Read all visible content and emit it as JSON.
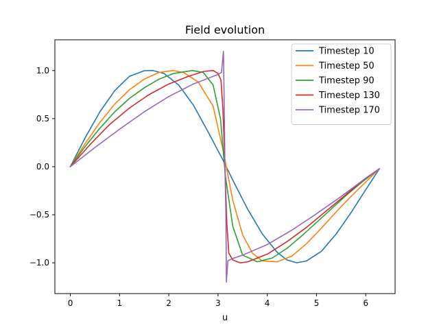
{
  "chart_data": {
    "type": "line",
    "title": "Field evolution",
    "xlabel": "u",
    "ylabel": "",
    "xlim": [
      -0.314,
      6.597
    ],
    "ylim": [
      -1.32,
      1.32
    ],
    "xticks": [
      0,
      1,
      2,
      3,
      4,
      5,
      6
    ],
    "xtick_labels": [
      "0",
      "1",
      "2",
      "3",
      "4",
      "5",
      "6"
    ],
    "yticks": [
      -1.0,
      -0.5,
      0.0,
      0.5,
      1.0
    ],
    "ytick_labels": [
      "−1.0",
      "−0.5",
      "0.0",
      "0.5",
      "1.0"
    ],
    "grid": false,
    "legend_position": "top-right",
    "series": [
      {
        "name": "Timestep 10",
        "color": "#1f77b4",
        "x": [
          0,
          0.3,
          0.6,
          0.9,
          1.2,
          1.5,
          1.68,
          1.9,
          2.2,
          2.5,
          2.8,
          3.1,
          3.3,
          3.6,
          3.9,
          4.2,
          4.4,
          4.6,
          4.8,
          5.1,
          5.4,
          5.7,
          6.0,
          6.28
        ],
        "y": [
          0,
          0.3,
          0.57,
          0.79,
          0.94,
          0.998,
          1.0,
          0.97,
          0.85,
          0.64,
          0.36,
          0.07,
          -0.14,
          -0.44,
          -0.7,
          -0.89,
          -0.97,
          -1.0,
          -0.98,
          -0.88,
          -0.7,
          -0.48,
          -0.24,
          -0.02
        ]
      },
      {
        "name": "Timestep 50",
        "color": "#ff7f0e",
        "x": [
          0,
          0.3,
          0.6,
          0.9,
          1.2,
          1.5,
          1.8,
          2.08,
          2.3,
          2.6,
          2.9,
          3.1,
          3.3,
          3.5,
          3.7,
          3.9,
          4.2,
          4.5,
          4.8,
          5.1,
          5.4,
          5.7,
          6.0,
          6.28
        ],
        "y": [
          0,
          0.24,
          0.46,
          0.65,
          0.8,
          0.91,
          0.98,
          1.0,
          0.98,
          0.88,
          0.63,
          0.18,
          -0.35,
          -0.71,
          -0.9,
          -0.98,
          -0.99,
          -0.93,
          -0.8,
          -0.64,
          -0.47,
          -0.31,
          -0.16,
          -0.02
        ]
      },
      {
        "name": "Timestep 90",
        "color": "#2ca02c",
        "x": [
          0,
          0.3,
          0.6,
          0.9,
          1.2,
          1.5,
          1.8,
          2.1,
          2.48,
          2.7,
          2.9,
          3.05,
          3.15,
          3.3,
          3.5,
          3.8,
          4.1,
          4.4,
          4.7,
          5.0,
          5.3,
          5.6,
          5.9,
          6.28
        ],
        "y": [
          0,
          0.21,
          0.4,
          0.57,
          0.71,
          0.82,
          0.91,
          0.97,
          1.0,
          0.98,
          0.85,
          0.5,
          -0.1,
          -0.62,
          -0.92,
          -0.99,
          -0.95,
          -0.85,
          -0.72,
          -0.58,
          -0.44,
          -0.3,
          -0.17,
          -0.02
        ]
      },
      {
        "name": "Timestep 130",
        "color": "#d62728",
        "x": [
          0,
          0.4,
          0.8,
          1.2,
          1.6,
          2.0,
          2.4,
          2.7,
          2.9,
          3.0,
          3.06,
          3.1,
          3.14,
          3.18,
          3.22,
          3.3,
          3.45,
          3.6,
          4.0,
          4.4,
          4.8,
          5.2,
          5.6,
          6.0,
          6.28
        ],
        "y": [
          0,
          0.23,
          0.44,
          0.61,
          0.75,
          0.86,
          0.94,
          0.99,
          1.0,
          0.97,
          0.9,
          0.6,
          0.0,
          -0.6,
          -0.9,
          -0.97,
          -1.0,
          -0.99,
          -0.91,
          -0.78,
          -0.63,
          -0.46,
          -0.29,
          -0.12,
          -0.02
        ]
      },
      {
        "name": "Timestep 170",
        "color": "#9467bd",
        "x": [
          0,
          0.5,
          1.0,
          1.5,
          2.0,
          2.5,
          2.8,
          3.0,
          3.07,
          3.11,
          3.13,
          3.14,
          3.16,
          3.17,
          3.2,
          3.27,
          3.5,
          4.0,
          4.5,
          5.0,
          5.5,
          6.0,
          6.28
        ],
        "y": [
          0,
          0.2,
          0.39,
          0.57,
          0.73,
          0.86,
          0.92,
          0.96,
          0.98,
          1.2,
          0.5,
          0.0,
          -0.5,
          -1.2,
          -0.98,
          -0.96,
          -0.92,
          -0.81,
          -0.66,
          -0.49,
          -0.31,
          -0.12,
          -0.02
        ]
      }
    ]
  }
}
